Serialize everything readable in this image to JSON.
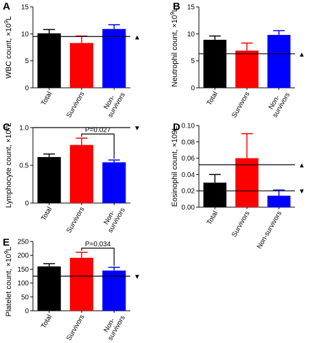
{
  "chart_data": [
    {
      "type": "bar",
      "panel": "A",
      "y_label": [
        "WBC count, ×10",
        "9",
        "L"
      ],
      "categories": [
        "Total",
        "Survivors",
        "Non-survivors"
      ],
      "values": [
        10.1,
        8.3,
        10.9
      ],
      "errors": [
        0.7,
        1.3,
        0.8
      ],
      "colors": [
        "#000000",
        "#ff0000",
        "#0000ff"
      ],
      "ylim": [
        0,
        15
      ],
      "yticks": [
        0,
        5,
        10,
        15
      ],
      "ref_lines": [
        {
          "value": 9.5,
          "marker": "▲"
        }
      ]
    },
    {
      "type": "bar",
      "panel": "B",
      "y_label": [
        "Neutrophil count, ×10",
        "9",
        "L"
      ],
      "categories": [
        "Total",
        "Survivors",
        "Non-survivors"
      ],
      "values": [
        8.9,
        6.9,
        9.8
      ],
      "errors": [
        0.7,
        1.4,
        0.8
      ],
      "colors": [
        "#000000",
        "#ff0000",
        "#0000ff"
      ],
      "ylim": [
        0,
        15
      ],
      "yticks": [
        0,
        5,
        10,
        15
      ],
      "ref_lines": [
        {
          "value": 6.3,
          "marker": "▲"
        }
      ]
    },
    {
      "type": "bar",
      "panel": "C",
      "y_label": [
        "Lymphocyte count, ×10",
        "9",
        "L"
      ],
      "categories": [
        "Total",
        "Survivors",
        "Non-survivors"
      ],
      "values": [
        0.61,
        0.77,
        0.54
      ],
      "errors": [
        0.04,
        0.09,
        0.03
      ],
      "colors": [
        "#000000",
        "#ff0000",
        "#0000ff"
      ],
      "ylim": [
        0,
        1.0
      ],
      "yticks": [
        0,
        0.5,
        {
          "value": 1,
          "label": "1.0"
        }
      ],
      "ref_lines": [
        {
          "value": 1.0,
          "marker": "▼"
        }
      ],
      "annotation": "P=0.027"
    },
    {
      "type": "bar",
      "panel": "D",
      "y_label": [
        "Eosinophil count, ×109L"
      ],
      "categories": [
        "Total",
        "Survivors",
        "Non-survivors"
      ],
      "values": [
        0.03,
        0.06,
        0.014
      ],
      "errors": [
        0.01,
        0.03,
        0.007
      ],
      "colors": [
        "#000000",
        "#ff0000",
        "#0000ff"
      ],
      "ylim": [
        0,
        0.1
      ],
      "yticks": [
        {
          "value": 0,
          "label": "0.00"
        },
        {
          "value": 0.02,
          "label": "0.02"
        },
        {
          "value": 0.04,
          "label": "0.04"
        },
        {
          "value": 0.06,
          "label": "0.06"
        },
        {
          "value": 0.08,
          "label": "0.08"
        },
        {
          "value": 0.1,
          "label": "0.10"
        }
      ],
      "ref_lines": [
        {
          "value": 0.052,
          "marker": "▲"
        },
        {
          "value": 0.02,
          "marker": "▼"
        }
      ]
    },
    {
      "type": "bar",
      "panel": "E",
      "y_label": [
        "Platelet count, ×10",
        "9",
        "L"
      ],
      "categories": [
        "Total",
        "Survivors",
        "Non-survivors"
      ],
      "values": [
        160,
        191,
        145
      ],
      "errors": [
        10,
        20,
        12
      ],
      "colors": [
        "#000000",
        "#ff0000",
        "#0000ff"
      ],
      "ylim": [
        0,
        250
      ],
      "yticks": [
        0,
        50,
        100,
        150,
        200,
        250
      ],
      "ref_lines": [
        {
          "value": 125,
          "marker": "▼"
        }
      ],
      "annotation": "P=0.034"
    }
  ]
}
